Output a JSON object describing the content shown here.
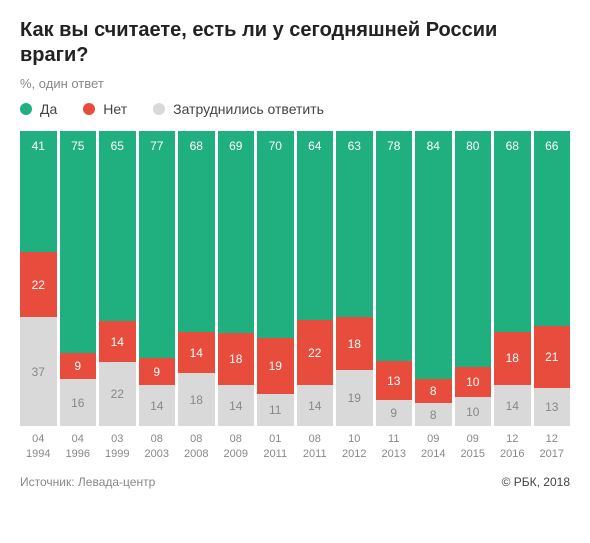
{
  "title": "Как вы считаете, есть ли у сегодняшней России враги?",
  "subtitle": "%, один ответ",
  "legend": {
    "yes": "Да",
    "no": "Нет",
    "dk": "Затруднились ответить"
  },
  "colors": {
    "yes": "#20b080",
    "no": "#e74c3c",
    "dk": "#d9d9d9",
    "yes_text": "#ffffff",
    "no_text": "#ffffff",
    "dk_text": "#888888",
    "title": "#222222",
    "muted": "#888888"
  },
  "chart": {
    "type": "stacked-bar-100",
    "value_fontsize": 12,
    "label_fontsize": 11,
    "bars": [
      {
        "month": "04",
        "year": "1994",
        "yes": 41,
        "no": 22,
        "dk": 37
      },
      {
        "month": "04",
        "year": "1996",
        "yes": 75,
        "no": 9,
        "dk": 16
      },
      {
        "month": "03",
        "year": "1999",
        "yes": 65,
        "no": 14,
        "dk": 22
      },
      {
        "month": "08",
        "year": "2003",
        "yes": 77,
        "no": 9,
        "dk": 14
      },
      {
        "month": "08",
        "year": "2008",
        "yes": 68,
        "no": 14,
        "dk": 18
      },
      {
        "month": "08",
        "year": "2009",
        "yes": 69,
        "no": 18,
        "dk": 14
      },
      {
        "month": "01",
        "year": "2011",
        "yes": 70,
        "no": 19,
        "dk": 11
      },
      {
        "month": "08",
        "year": "2011",
        "yes": 64,
        "no": 22,
        "dk": 14
      },
      {
        "month": "10",
        "year": "2012",
        "yes": 63,
        "no": 18,
        "dk": 19
      },
      {
        "month": "11",
        "year": "2013",
        "yes": 78,
        "no": 13,
        "dk": 9
      },
      {
        "month": "09",
        "year": "2014",
        "yes": 84,
        "no": 8,
        "dk": 8
      },
      {
        "month": "09",
        "year": "2015",
        "yes": 80,
        "no": 10,
        "dk": 10
      },
      {
        "month": "12",
        "year": "2016",
        "yes": 68,
        "no": 18,
        "dk": 14
      },
      {
        "month": "12",
        "year": "2017",
        "yes": 66,
        "no": 21,
        "dk": 13
      }
    ]
  },
  "footer": {
    "source_prefix": "Источник:",
    "source": "Левада-центр",
    "attribution": "© РБК, 2018"
  }
}
